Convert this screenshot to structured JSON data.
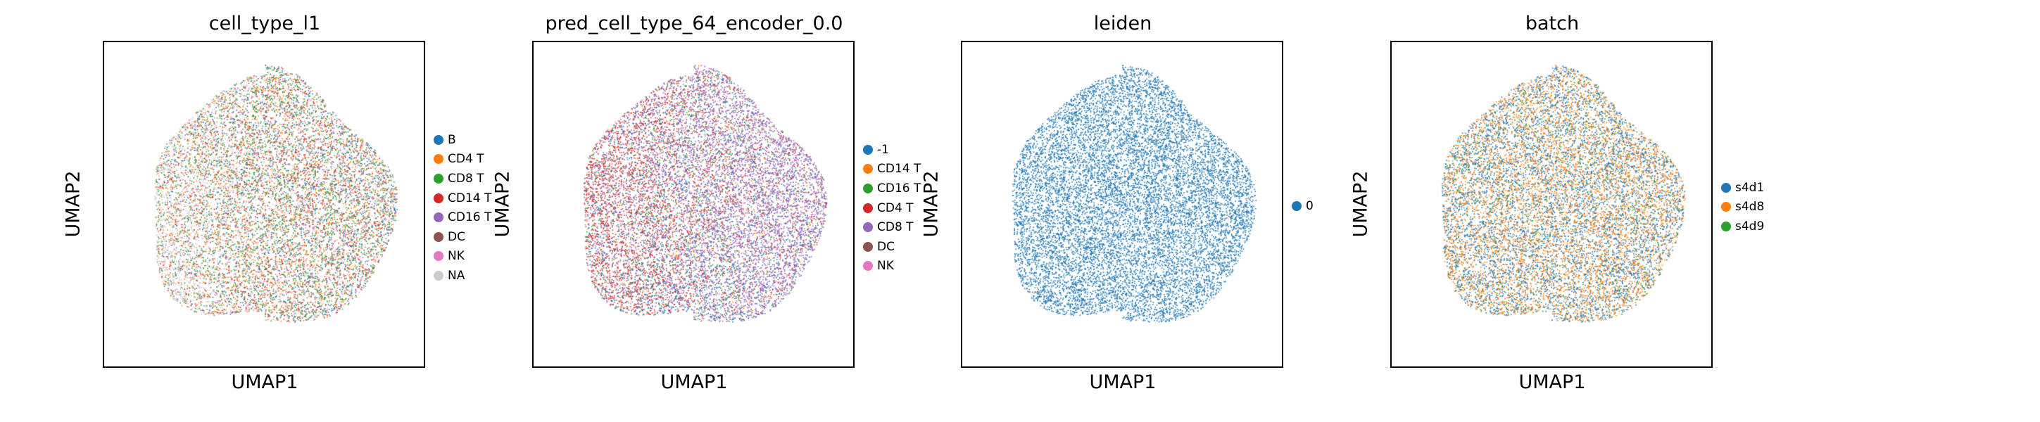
{
  "chart_data": [
    {
      "type": "scatter",
      "title": "cell_type_l1",
      "xlabel": "UMAP1",
      "ylabel": "UMAP2",
      "grid": false,
      "legend_placement": "right",
      "categories": [
        {
          "name": "B",
          "color": "#1f77b4",
          "weight": 12
        },
        {
          "name": "CD4 T",
          "color": "#ff7f0e",
          "weight": 20
        },
        {
          "name": "CD8 T",
          "color": "#2ca02c",
          "weight": 22
        },
        {
          "name": "CD14 T",
          "color": "#d62728",
          "weight": 14
        },
        {
          "name": "CD16 T",
          "color": "#9467bd",
          "weight": 6
        },
        {
          "name": "DC",
          "color": "#8c564b",
          "weight": 4
        },
        {
          "name": "NK",
          "color": "#e377c2",
          "weight": 6
        },
        {
          "name": "NA",
          "color": "#cccccc",
          "weight": 16
        }
      ]
    },
    {
      "type": "scatter",
      "title": "pred_cell_type_64_encoder_0.0",
      "xlabel": "UMAP1",
      "ylabel": "UMAP2",
      "grid": false,
      "legend_placement": "right",
      "categories": [
        {
          "name": "-1",
          "color": "#1f77b4",
          "weight": 18
        },
        {
          "name": "CD14 T",
          "color": "#ff7f0e",
          "weight": 8
        },
        {
          "name": "CD16 T",
          "color": "#2ca02c",
          "weight": 10
        },
        {
          "name": "CD4 T",
          "color": "#d62728",
          "weight": 22
        },
        {
          "name": "CD8 T",
          "color": "#9467bd",
          "weight": 30
        },
        {
          "name": "DC",
          "color": "#8c564b",
          "weight": 4
        },
        {
          "name": "NK",
          "color": "#e377c2",
          "weight": 8
        }
      ]
    },
    {
      "type": "scatter",
      "title": "leiden",
      "xlabel": "UMAP1",
      "ylabel": "UMAP2",
      "grid": false,
      "legend_placement": "right",
      "categories": [
        {
          "name": "0",
          "color": "#1f77b4",
          "weight": 100
        }
      ]
    },
    {
      "type": "scatter",
      "title": "batch",
      "xlabel": "UMAP1",
      "ylabel": "UMAP2",
      "grid": false,
      "legend_placement": "right",
      "categories": [
        {
          "name": "s4d1",
          "color": "#1f77b4",
          "weight": 45
        },
        {
          "name": "s4d8",
          "color": "#ff7f0e",
          "weight": 48
        },
        {
          "name": "s4d9",
          "color": "#2ca02c",
          "weight": 7
        }
      ]
    }
  ]
}
